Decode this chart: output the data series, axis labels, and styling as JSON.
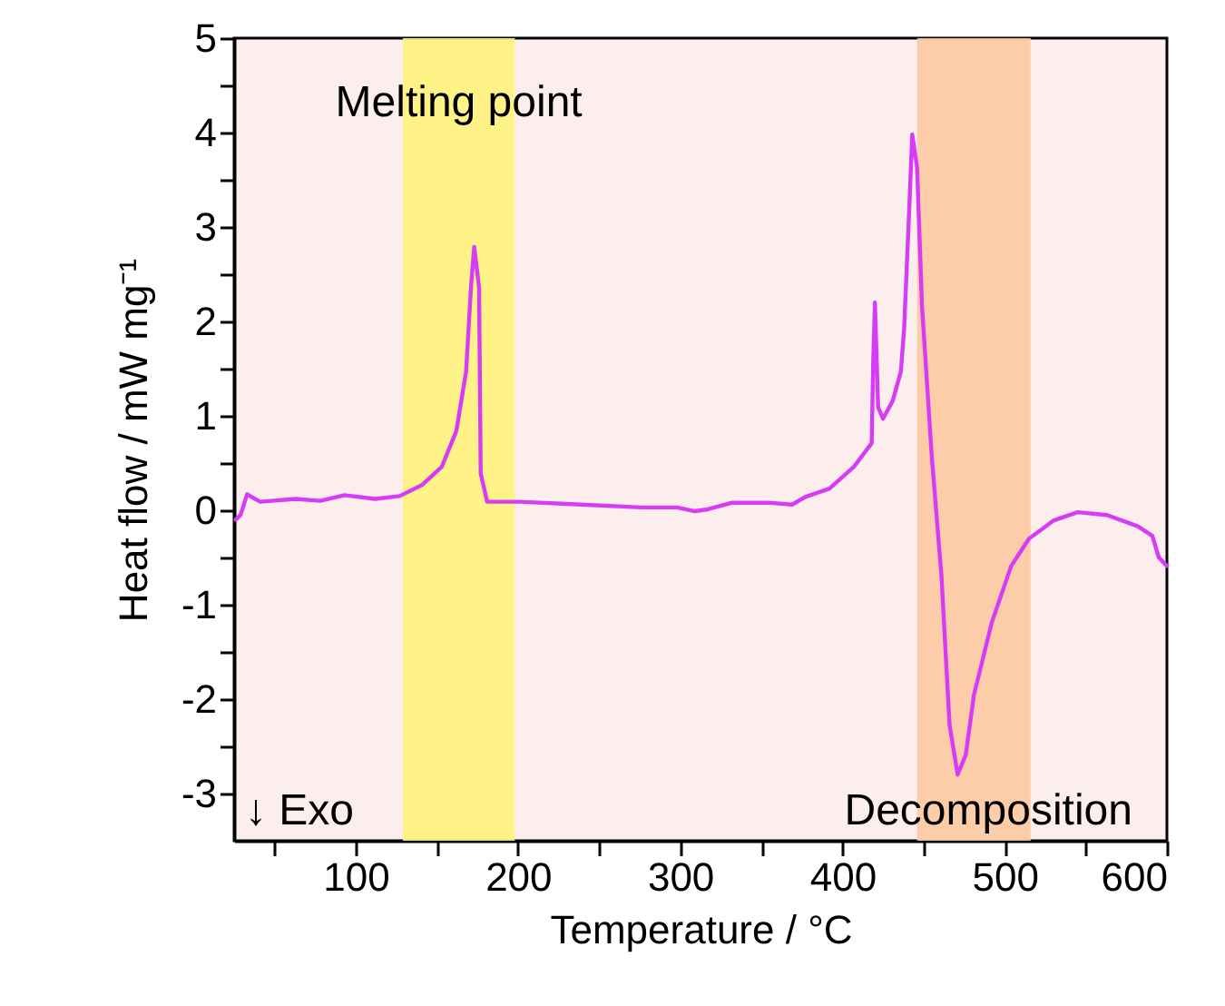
{
  "chart_data": {
    "type": "line",
    "xlabel": "Temperature / °C",
    "ylabel": "Heat flow / mW mg⁻¹",
    "xlim": [
      25,
      600
    ],
    "ylim": [
      -3.5,
      5
    ],
    "xticks": [
      {
        "value": 50,
        "label": null
      },
      100,
      {
        "value": 150,
        "label": null
      },
      200,
      {
        "value": 250,
        "label": null
      },
      300,
      {
        "value": 350,
        "label": null
      },
      400,
      {
        "value": 450,
        "label": null
      },
      500,
      {
        "value": 550,
        "label": null
      },
      600
    ],
    "yticks": [
      -3,
      {
        "value": -2.5,
        "label": null
      },
      -2,
      {
        "value": -1.5,
        "label": null
      },
      -1,
      {
        "value": -0.5,
        "label": null
      },
      0,
      {
        "value": 0.5,
        "label": null
      },
      1,
      {
        "value": 1.5,
        "label": null
      },
      2,
      {
        "value": 2.5,
        "label": null
      },
      3,
      {
        "value": 3.5,
        "label": null
      },
      4,
      {
        "value": 4.5,
        "label": null
      },
      5
    ],
    "grid": false,
    "marker": "none",
    "line_style": "solid",
    "series": [
      {
        "color": "#d63cf5",
        "x": [
          26,
          29,
          33,
          41,
          63,
          78,
          93,
          112,
          127,
          141,
          153,
          162,
          168,
          171,
          173,
          176,
          177,
          181,
          201,
          239,
          276,
          298,
          309,
          317,
          332,
          354,
          369,
          377,
          392,
          407,
          418,
          419,
          420,
          422,
          425,
          431,
          436,
          438,
          441,
          443,
          446,
          449,
          455,
          461,
          466,
          471,
          476,
          481,
          492,
          504,
          515,
          530,
          545,
          563,
          582,
          591,
          595,
          600
        ],
        "values": [
          -0.1,
          -0.05,
          0.17,
          0.09,
          0.12,
          0.1,
          0.16,
          0.12,
          0.15,
          0.27,
          0.46,
          0.84,
          1.47,
          2.36,
          2.79,
          2.36,
          0.39,
          0.09,
          0.09,
          0.06,
          0.03,
          0.03,
          -0.01,
          0.01,
          0.08,
          0.08,
          0.06,
          0.14,
          0.23,
          0.46,
          0.71,
          1.6,
          2.2,
          1.09,
          0.97,
          1.16,
          1.47,
          1.92,
          3.12,
          3.98,
          3.63,
          2.17,
          0.58,
          -0.69,
          -2.27,
          -2.8,
          -2.59,
          -1.96,
          -1.19,
          -0.59,
          -0.3,
          -0.11,
          -0.02,
          -0.05,
          -0.17,
          -0.27,
          -0.5,
          -0.59
        ]
      }
    ],
    "bands": [
      {
        "axis": "x",
        "from": 129,
        "to": 198,
        "label": "Melting point",
        "color": "#fff27a"
      },
      {
        "axis": "x",
        "from": 446,
        "to": 516,
        "label": "Decomposition",
        "color": "#fcc9a0"
      }
    ],
    "annotations": [
      "↓ Exo"
    ]
  }
}
